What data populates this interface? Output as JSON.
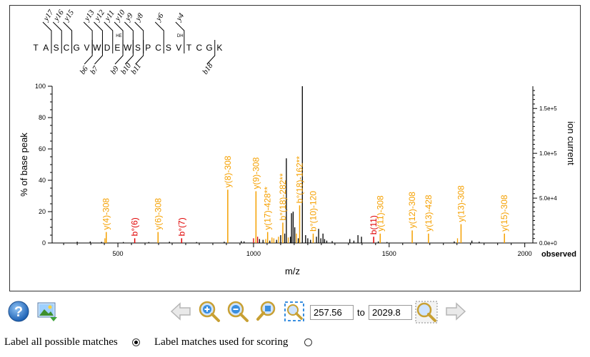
{
  "chart_data": {
    "type": "bar",
    "xlabel": "m/z",
    "ylabel_left": "% of base peak",
    "ylabel_right": "ion current",
    "right_axis_tag": "observed",
    "xlim": [
      257.56,
      2029.8
    ],
    "ylim": [
      0,
      100
    ],
    "x_ticks": [
      500,
      1000,
      1500,
      2000
    ],
    "y_ticks": [
      0,
      20,
      40,
      60,
      80,
      100
    ],
    "y_right_ticks": [
      {
        "value": 0,
        "label": "0.0e+0"
      },
      {
        "value": 28.6,
        "label": "5.0e+4"
      },
      {
        "value": 57.2,
        "label": "1.0e+5"
      },
      {
        "value": 85.8,
        "label": "1.5e+5"
      }
    ],
    "colors": {
      "unmatched": "#000000",
      "y_ion": "#f5a000",
      "b_ion": "#e00000"
    },
    "sequence": [
      "T",
      "A",
      "S",
      "C",
      "G",
      "V",
      "W",
      "D",
      "E",
      "W",
      "S",
      "P",
      "C",
      "S",
      "V",
      "T",
      "C",
      "G",
      "K"
    ],
    "residue_mods": [
      {
        "after_index": 8,
        "text": "HE"
      },
      {
        "after_index": 14,
        "text": "DH"
      }
    ],
    "fragment_marks": [
      {
        "gap": 2,
        "label": "y17",
        "side": "top"
      },
      {
        "gap": 3,
        "label": "y16",
        "side": "top"
      },
      {
        "gap": 4,
        "label": "y15",
        "side": "top"
      },
      {
        "gap": 6,
        "label": "y13",
        "side": "top"
      },
      {
        "gap": 7,
        "label": "y12",
        "side": "top"
      },
      {
        "gap": 8,
        "label": "y11",
        "side": "top"
      },
      {
        "gap": 9,
        "label": "y10",
        "side": "top"
      },
      {
        "gap": 10,
        "label": "y9",
        "side": "top"
      },
      {
        "gap": 11,
        "label": "y8",
        "side": "top"
      },
      {
        "gap": 13,
        "label": "y6",
        "side": "top"
      },
      {
        "gap": 15,
        "label": "y4",
        "side": "top"
      },
      {
        "gap": 6,
        "label": "b6",
        "side": "bottom"
      },
      {
        "gap": 7,
        "label": "b7",
        "side": "bottom"
      },
      {
        "gap": 9,
        "label": "b9",
        "side": "bottom"
      },
      {
        "gap": 10,
        "label": "b10",
        "side": "bottom"
      },
      {
        "gap": 11,
        "label": "b11",
        "side": "bottom"
      },
      {
        "gap": 18,
        "label": "b18",
        "side": "bottom"
      }
    ],
    "labeled_peaks": [
      {
        "x": 457,
        "y": 7,
        "label": "y(4)-308",
        "kind": "y"
      },
      {
        "x": 562,
        "y": 3,
        "label": "b°(6)",
        "kind": "b"
      },
      {
        "x": 648,
        "y": 7,
        "label": "y(6)-308",
        "kind": "y"
      },
      {
        "x": 735,
        "y": 3,
        "label": "b°(7)",
        "kind": "b"
      },
      {
        "x": 905,
        "y": 34,
        "label": "y(8)-308",
        "kind": "y"
      },
      {
        "x": 1009,
        "y": 33,
        "label": "y(9)-308",
        "kind": "y"
      },
      {
        "x": 1052,
        "y": 7,
        "label": "y(17)-428**",
        "kind": "y"
      },
      {
        "x": 1108,
        "y": 13,
        "label": "b°(18)-282**",
        "kind": "y"
      },
      {
        "x": 1170,
        "y": 24,
        "label": "b°(18)-162**",
        "kind": "y"
      },
      {
        "x": 1220,
        "y": 6,
        "label": "b°(10)-120",
        "kind": "y"
      },
      {
        "x": 1443,
        "y": 4,
        "label": "b(11)",
        "kind": "b"
      },
      {
        "x": 1467,
        "y": 6,
        "label": "y(11)-308",
        "kind": "y"
      },
      {
        "x": 1585,
        "y": 8,
        "label": "y(12)-308",
        "kind": "y"
      },
      {
        "x": 1645,
        "y": 6,
        "label": "y(13)-428",
        "kind": "y"
      },
      {
        "x": 1765,
        "y": 12,
        "label": "y(13)-308",
        "kind": "y"
      },
      {
        "x": 1925,
        "y": 6,
        "label": "y(15)-308",
        "kind": "y"
      }
    ],
    "unlabeled_peaks": [
      {
        "x": 350,
        "y": 0.8,
        "kind": "n"
      },
      {
        "x": 398,
        "y": 1.0,
        "kind": "n"
      },
      {
        "x": 440,
        "y": 0.7,
        "kind": "n"
      },
      {
        "x": 452,
        "y": 3.0,
        "kind": "y"
      },
      {
        "x": 520,
        "y": 0.6,
        "kind": "n"
      },
      {
        "x": 614,
        "y": 0.6,
        "kind": "n"
      },
      {
        "x": 690,
        "y": 0.8,
        "kind": "n"
      },
      {
        "x": 790,
        "y": 0.6,
        "kind": "n"
      },
      {
        "x": 892,
        "y": 0.8,
        "kind": "n"
      },
      {
        "x": 955,
        "y": 1.2,
        "kind": "n"
      },
      {
        "x": 965,
        "y": 1.0,
        "kind": "n"
      },
      {
        "x": 1000,
        "y": 3.0,
        "kind": "b"
      },
      {
        "x": 1015,
        "y": 4.0,
        "kind": "b"
      },
      {
        "x": 1022,
        "y": 2.5,
        "kind": "n"
      },
      {
        "x": 1035,
        "y": 2.0,
        "kind": "n"
      },
      {
        "x": 1045,
        "y": 2.5,
        "kind": "y"
      },
      {
        "x": 1060,
        "y": 1.5,
        "kind": "n"
      },
      {
        "x": 1068,
        "y": 3.5,
        "kind": "y"
      },
      {
        "x": 1075,
        "y": 3.0,
        "kind": "y"
      },
      {
        "x": 1085,
        "y": 2.0,
        "kind": "n"
      },
      {
        "x": 1092,
        "y": 4.0,
        "kind": "y"
      },
      {
        "x": 1100,
        "y": 5.0,
        "kind": "n"
      },
      {
        "x": 1115,
        "y": 6.0,
        "kind": "n"
      },
      {
        "x": 1121,
        "y": 54.0,
        "kind": "n"
      },
      {
        "x": 1128,
        "y": 3.5,
        "kind": "y"
      },
      {
        "x": 1136,
        "y": 4.0,
        "kind": "n"
      },
      {
        "x": 1140,
        "y": 19.0,
        "kind": "n"
      },
      {
        "x": 1146,
        "y": 20.0,
        "kind": "n"
      },
      {
        "x": 1152,
        "y": 10.0,
        "kind": "n"
      },
      {
        "x": 1158,
        "y": 6.0,
        "kind": "y"
      },
      {
        "x": 1165,
        "y": 3.0,
        "kind": "n"
      },
      {
        "x": 1180,
        "y": 100.0,
        "kind": "n"
      },
      {
        "x": 1192,
        "y": 5.0,
        "kind": "n"
      },
      {
        "x": 1200,
        "y": 3.0,
        "kind": "n"
      },
      {
        "x": 1210,
        "y": 2.0,
        "kind": "n"
      },
      {
        "x": 1232,
        "y": 4.0,
        "kind": "n"
      },
      {
        "x": 1240,
        "y": 9.0,
        "kind": "n"
      },
      {
        "x": 1248,
        "y": 3.0,
        "kind": "n"
      },
      {
        "x": 1256,
        "y": 6.0,
        "kind": "n"
      },
      {
        "x": 1262,
        "y": 2.5,
        "kind": "n"
      },
      {
        "x": 1270,
        "y": 1.5,
        "kind": "n"
      },
      {
        "x": 1290,
        "y": 1.2,
        "kind": "n"
      },
      {
        "x": 1355,
        "y": 2.5,
        "kind": "n"
      },
      {
        "x": 1370,
        "y": 1.5,
        "kind": "n"
      },
      {
        "x": 1385,
        "y": 5.0,
        "kind": "n"
      },
      {
        "x": 1398,
        "y": 4.0,
        "kind": "n"
      },
      {
        "x": 1460,
        "y": 1.0,
        "kind": "n"
      },
      {
        "x": 1492,
        "y": 0.6,
        "kind": "n"
      },
      {
        "x": 1740,
        "y": 1.0,
        "kind": "n"
      },
      {
        "x": 1752,
        "y": 3.0,
        "kind": "y"
      },
      {
        "x": 1805,
        "y": 1.5,
        "kind": "n"
      },
      {
        "x": 1832,
        "y": 0.8,
        "kind": "n"
      }
    ]
  },
  "range": {
    "from": "257.56",
    "to_label": "to",
    "to": "2029.8"
  },
  "options": {
    "label_all": "Label all possible matches",
    "label_scoring": "Label matches used for scoring",
    "selected": "label_all"
  },
  "icons": {
    "help": "help-icon",
    "image": "image-export-icon",
    "back": "back-arrow-icon",
    "zoom_in": "zoom-in-icon",
    "zoom_out": "zoom-out-icon",
    "zoom_reset": "zoom-reset-icon",
    "zoom_fit": "zoom-fit-icon",
    "zoom_range": "zoom-range-icon",
    "forward": "forward-arrow-icon"
  }
}
